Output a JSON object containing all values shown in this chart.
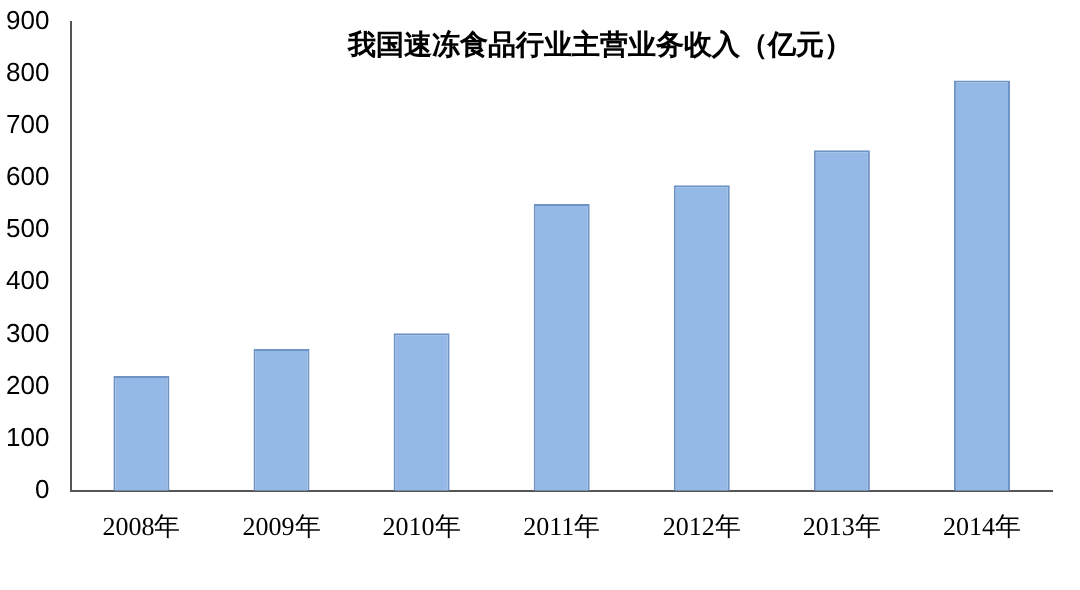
{
  "chart_data": {
    "type": "bar",
    "title": "我国速冻食品行业主营业务收入（亿元）",
    "categories": [
      "2008年",
      "2009年",
      "2010年",
      "2011年",
      "2012年",
      "2013年",
      "2014年"
    ],
    "values": [
      220,
      272,
      302,
      550,
      586,
      653,
      787
    ],
    "color": "#95b9e6",
    "ylim": [
      0,
      900
    ],
    "yticks": [
      0,
      100,
      200,
      300,
      400,
      500,
      600,
      700,
      800,
      900
    ],
    "grid": false,
    "legend": false
  }
}
